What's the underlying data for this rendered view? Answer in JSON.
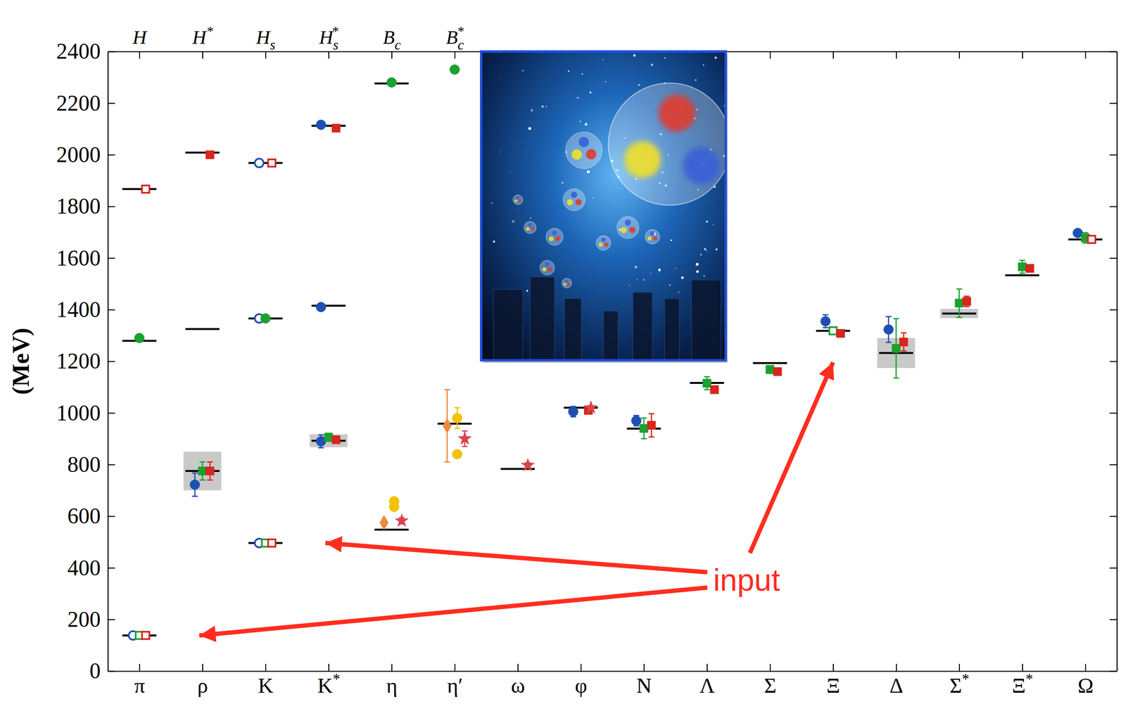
{
  "chart_data": {
    "type": "scatter",
    "ylabel": "(MeV)",
    "ylim": [
      0,
      2400
    ],
    "yticks": [
      0,
      200,
      400,
      600,
      800,
      1000,
      1200,
      1400,
      1600,
      1800,
      2000,
      2200,
      2400
    ],
    "categories": [
      "π",
      "ρ",
      "K",
      "K*",
      "η",
      "η′",
      "ω",
      "φ",
      "N",
      "Λ",
      "Σ",
      "Ξ",
      "Δ",
      "Σ*",
      "Ξ*",
      "Ω"
    ],
    "top_categories": [
      "H",
      "H*",
      "Hs",
      "Hs*",
      "Bc",
      "Bc*",
      null,
      null,
      null,
      null,
      null,
      null,
      null,
      null,
      null,
      null
    ],
    "series": [
      {
        "color": "#000000",
        "marker": "hline",
        "values": [
          138,
          775,
          496,
          892,
          548,
          958,
          783,
          1020,
          939,
          1116,
          1193,
          1318,
          1232,
          1385,
          1533,
          1672
        ],
        "errors": [
          null,
          75,
          null,
          25,
          null,
          null,
          null,
          null,
          null,
          null,
          null,
          null,
          58,
          18,
          null,
          null
        ]
      },
      {
        "color": "#000000",
        "marker": "hline",
        "values": [
          1867,
          2008,
          1968,
          2112,
          null,
          null,
          null,
          null,
          null,
          null,
          null,
          null,
          null,
          null,
          null,
          null
        ]
      },
      {
        "color": "#000000",
        "marker": "hline",
        "values": [
          1279,
          1325,
          1366,
          1415,
          2276,
          null,
          null,
          null,
          null,
          null,
          null,
          null,
          null,
          null,
          null,
          null
        ]
      },
      {
        "color": "#1f4fb5",
        "marker": "circle",
        "values": [
          null,
          722,
          null,
          890,
          null,
          null,
          null,
          1005,
          970,
          null,
          null,
          1355,
          1323,
          null,
          null,
          1697
        ],
        "errors": [
          null,
          45,
          null,
          25,
          null,
          null,
          null,
          20,
          20,
          null,
          null,
          25,
          50,
          null,
          null,
          10
        ]
      },
      {
        "color": "#1f4fb5",
        "marker": "circle",
        "values": [
          null,
          null,
          null,
          2116,
          null,
          null,
          null,
          null,
          null,
          null,
          null,
          null,
          null,
          null,
          null,
          null
        ]
      },
      {
        "color": "#1f4fb5",
        "marker": "circle",
        "values": [
          null,
          null,
          null,
          1410,
          null,
          null,
          null,
          null,
          null,
          null,
          null,
          null,
          null,
          null,
          null,
          null
        ]
      },
      {
        "color": "#1f4fb5",
        "marker": "circle-open",
        "values": [
          138,
          null,
          496,
          null,
          null,
          null,
          null,
          null,
          null,
          null,
          null,
          null,
          null,
          null,
          null,
          null
        ]
      },
      {
        "color": "#1f4fb5",
        "marker": "circle-open",
        "values": [
          null,
          null,
          1968,
          null,
          null,
          null,
          null,
          null,
          null,
          null,
          null,
          null,
          null,
          null,
          null,
          null
        ]
      },
      {
        "color": "#1f4fb5",
        "marker": "circle-open",
        "values": [
          null,
          null,
          1366,
          null,
          null,
          null,
          null,
          null,
          null,
          null,
          null,
          null,
          null,
          null,
          null,
          null
        ]
      },
      {
        "color": "#1aa130",
        "marker": "square",
        "values": [
          null,
          775,
          null,
          906,
          null,
          null,
          null,
          null,
          940,
          1115,
          1168,
          null,
          1250,
          1425,
          1566,
          1678
        ],
        "errors": [
          null,
          35,
          null,
          15,
          null,
          null,
          null,
          null,
          40,
          25,
          15,
          null,
          115,
          55,
          25,
          20
        ]
      },
      {
        "color": "#1aa130",
        "marker": "square-open",
        "values": [
          138,
          null,
          496,
          null,
          null,
          null,
          null,
          null,
          null,
          null,
          null,
          1318,
          null,
          null,
          null,
          null
        ]
      },
      {
        "color": "#1aa130",
        "marker": "circle",
        "values": [
          1290,
          null,
          1366,
          null,
          2280,
          2330,
          null,
          null,
          null,
          null,
          null,
          null,
          null,
          null,
          null,
          null
        ],
        "errors": [
          12,
          null,
          null,
          null,
          null,
          null,
          null,
          null,
          null,
          null,
          null,
          null,
          null,
          null,
          null,
          null
        ]
      },
      {
        "color": "#d7261e",
        "marker": "square",
        "values": [
          null,
          775,
          null,
          896,
          null,
          null,
          null,
          1010,
          952,
          1090,
          1160,
          1308,
          1275,
          1432,
          1560,
          null
        ],
        "errors": [
          null,
          35,
          null,
          10,
          null,
          null,
          null,
          10,
          45,
          12,
          10,
          8,
          35,
          20,
          8,
          null
        ]
      },
      {
        "color": "#d7261e",
        "marker": "square",
        "values": [
          null,
          2000,
          null,
          2103,
          null,
          null,
          null,
          null,
          null,
          null,
          null,
          null,
          null,
          null,
          null,
          null
        ]
      },
      {
        "color": "#d7261e",
        "marker": "square-open",
        "values": [
          138,
          null,
          496,
          null,
          null,
          null,
          null,
          null,
          null,
          null,
          null,
          null,
          null,
          null,
          null,
          1672
        ]
      },
      {
        "color": "#d7261e",
        "marker": "square-open",
        "values": [
          1867,
          null,
          1968,
          null,
          null,
          null,
          null,
          null,
          null,
          null,
          null,
          null,
          null,
          null,
          null,
          null
        ]
      },
      {
        "color": "#f0883a",
        "marker": "diamond",
        "values": [
          null,
          null,
          null,
          null,
          575,
          950,
          null,
          null,
          null,
          null,
          null,
          null,
          null,
          null,
          null,
          null
        ],
        "errors": [
          null,
          null,
          null,
          null,
          null,
          140,
          null,
          null,
          null,
          null,
          null,
          null,
          null,
          null,
          null,
          null
        ]
      },
      {
        "color": "#f2c200",
        "marker": "circle",
        "values": [
          null,
          null,
          null,
          null,
          658,
          980,
          null,
          null,
          null,
          null,
          null,
          null,
          null,
          null,
          null,
          null
        ],
        "errors": [
          null,
          null,
          null,
          null,
          null,
          40,
          null,
          null,
          null,
          null,
          null,
          null,
          null,
          null,
          null,
          null
        ]
      },
      {
        "color": "#f2c200",
        "marker": "circle",
        "values": [
          null,
          null,
          null,
          null,
          636,
          840,
          null,
          null,
          null,
          null,
          null,
          null,
          null,
          null,
          null,
          null
        ]
      },
      {
        "color": "#d9434d",
        "marker": "star",
        "values": [
          null,
          null,
          null,
          null,
          582,
          900,
          797,
          1020,
          null,
          null,
          null,
          null,
          null,
          null,
          null,
          null
        ],
        "errors": [
          null,
          null,
          null,
          null,
          12,
          30,
          10,
          8,
          null,
          null,
          null,
          null,
          null,
          null,
          null,
          null
        ]
      }
    ],
    "annotations": [
      {
        "text": "input",
        "points_to": [
          "π",
          "K",
          "Ξ"
        ]
      }
    ]
  }
}
